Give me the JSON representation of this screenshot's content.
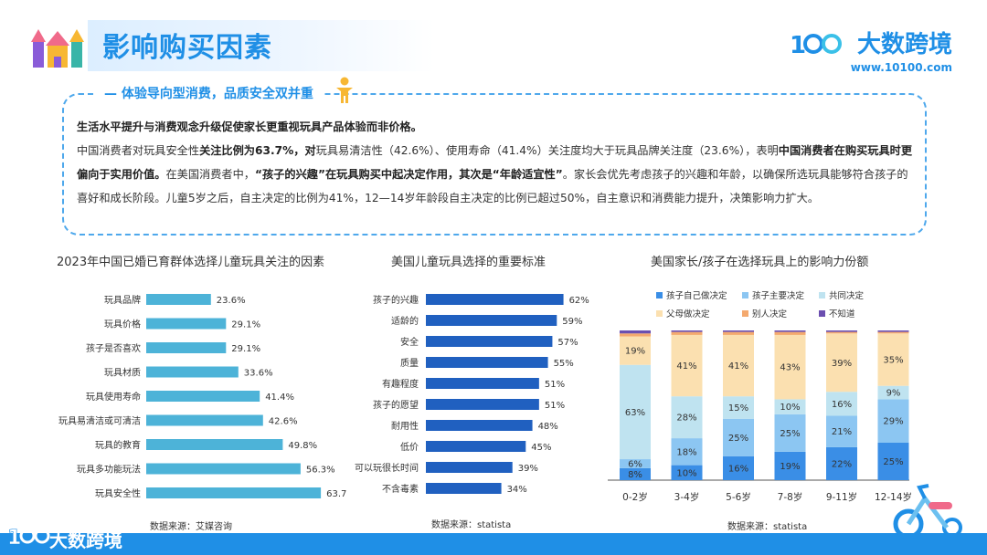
{
  "header": {
    "title": "影响购买因素",
    "brand_name": "大数跨境",
    "brand_url": "www.10100.com"
  },
  "summary": {
    "heading": "体验导向型消费，品质安全双并重",
    "lead": "生活水平提升与消费观念升级促使家长更重视玩具产品体验而非价格。",
    "p_a": "中国消费者对玩具安全性",
    "p_b": "关注比例为63.7%，对",
    "p_c": "玩具易清洁性（42.6%）、使用寿命（41.4%）关注度均大于玩具品牌关注度（23.6%），表明",
    "p_d": "中国消费者在购买玩具时更偏向于实用价值。",
    "p_e": "在美国消费者中，",
    "p_f": "“孩子的兴趣”在玩具购买中起决定作用，其次是“年龄适宜性”",
    "p_g": "。家长会优先考虑孩子的兴趣和年龄，以确保所选玩具能够符合孩子的喜好和成长阶段。儿童5岁之后，自主决定的比例为41%，12—14岁年龄段自主决定的比例已超过50%，自主意识和消费能力提升，决策影响力扩大。"
  },
  "sources": {
    "left": "数据来源：艾媒咨询",
    "middle": "数据来源：statista",
    "right": "数据来源：statista"
  },
  "footer": {
    "brand": "大数跨境"
  },
  "colors": {
    "accent": "#1f8fe6",
    "bar_light": "#4db3d8",
    "bar_dark": "#2060c0",
    "s1": "#3a8ee6",
    "s2": "#8cc6f2",
    "s3": "#bfe3f0",
    "s4": "#fbe0b0",
    "s5": "#f4a96e",
    "s6": "#6b4fb0"
  },
  "chart_data": [
    {
      "type": "bar",
      "orientation": "horizontal",
      "title": "2023年中国已婚已育群体选择儿童玩具关注的因素",
      "categories": [
        "玩具品牌",
        "玩具价格",
        "孩子是否喜欢",
        "玩具材质",
        "玩具使用寿命",
        "玩具易清洁或可清洁",
        "玩具的教育",
        "玩具多功能玩法",
        "玩具安全性"
      ],
      "values": [
        23.6,
        29.1,
        29.1,
        33.6,
        41.4,
        42.6,
        49.8,
        56.3,
        63.7
      ],
      "labels": [
        "23.6%",
        "29.1%",
        "29.1%",
        "33.6%",
        "41.4%",
        "42.6%",
        "49.8%",
        "56.3%",
        "63.7%"
      ],
      "unit": "%",
      "xlim": [
        0,
        70
      ]
    },
    {
      "type": "bar",
      "orientation": "horizontal",
      "title": "美国儿童玩具选择的重要标准",
      "categories": [
        "孩子的兴趣",
        "适龄的",
        "安全",
        "质量",
        "有趣程度",
        "孩子的愿望",
        "耐用性",
        "低价",
        "可以玩很长时间",
        "不含毒素"
      ],
      "values": [
        62,
        59,
        57,
        55,
        51,
        51,
        48,
        45,
        39,
        34
      ],
      "labels": [
        "62%",
        "59%",
        "57%",
        "55%",
        "51%",
        "51%",
        "48%",
        "45%",
        "39%",
        "34%"
      ],
      "unit": "%",
      "xlim": [
        0,
        70
      ]
    },
    {
      "type": "bar",
      "stacked": true,
      "title": "美国家长/孩子在选择玩具上的影响力份额",
      "categories": [
        "0-2岁",
        "3-4岁",
        "5-6岁",
        "7-8岁",
        "9-11岁",
        "12-14岁"
      ],
      "legend": [
        "孩子自己做决定",
        "孩子主要决定",
        "共同决定",
        "父母做决定",
        "别人决定",
        "不知道"
      ],
      "series": [
        {
          "name": "孩子自己做决定",
          "values": [
            8,
            10,
            16,
            19,
            22,
            25
          ]
        },
        {
          "name": "孩子主要决定",
          "values": [
            6,
            18,
            25,
            25,
            21,
            29
          ]
        },
        {
          "name": "共同决定",
          "values": [
            63,
            28,
            15,
            10,
            16,
            9
          ]
        },
        {
          "name": "父母做决定",
          "values": [
            19,
            41,
            41,
            43,
            39,
            35
          ]
        },
        {
          "name": "别人决定",
          "values": [
            2,
            2,
            2,
            2,
            1,
            1
          ]
        },
        {
          "name": "不知道",
          "values": [
            2,
            1,
            1,
            1,
            1,
            1
          ]
        }
      ],
      "labels": [
        [
          "8%",
          "10%",
          "16%",
          "19%",
          "22%",
          "25%"
        ],
        [
          "6%",
          "18%",
          "25%",
          "25%",
          "21%",
          "29%"
        ],
        [
          "63%",
          "28%",
          "15%",
          "10%",
          "16%",
          "9%"
        ],
        [
          "19%",
          "41%",
          "41%",
          "43%",
          "39%",
          "35%"
        ]
      ],
      "ylim": [
        0,
        100
      ]
    }
  ]
}
